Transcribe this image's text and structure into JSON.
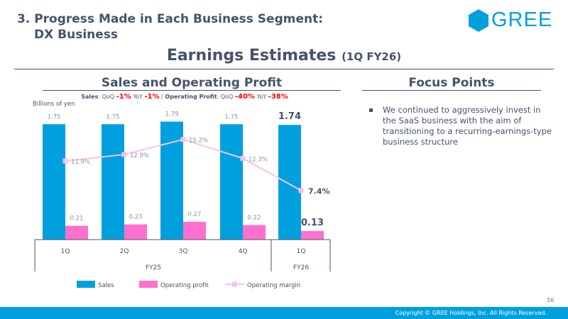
{
  "section_title": [
    "3. Progress Made in Each Business Segment:",
    "DX Business"
  ],
  "logo": "GREE",
  "title": "Earnings Estimates",
  "title_suffix": "(1Q FY26)",
  "left_heading": "Sales and Operating Profit",
  "right_heading": "Focus Points",
  "subtitle": {
    "sales": "Sales",
    "qoq": "QoQ",
    "yoy": "YoY",
    "sales_qoq": "-1%",
    "sales_yoy": "-1%",
    "sep": "/",
    "op": "Operating Profit",
    "op_qoq": "-40%",
    "op_yoy": "-38%"
  },
  "unit": "Billions of yen",
  "focus_points": [
    "We continued to aggressively invest in the SaaS business with the aim of transitioning to a recurring-earnings-type business structure"
  ],
  "chart_data": {
    "type": "bar",
    "categories": [
      "1Q",
      "2Q",
      "3Q",
      "4Q",
      "1Q"
    ],
    "groups": [
      {
        "label": "FY25",
        "span": 4
      },
      {
        "label": "FY26",
        "span": 1
      }
    ],
    "series": [
      {
        "name": "Sales",
        "type": "bar",
        "color": "#00a0df",
        "values": [
          1.75,
          1.75,
          1.79,
          1.75,
          1.74
        ],
        "labels": [
          "1.75",
          "1.75",
          "1.79",
          "1.75",
          "1.74"
        ]
      },
      {
        "name": "Operating profit",
        "type": "bar",
        "color": "#ff6fcf",
        "values": [
          0.21,
          0.23,
          0.27,
          0.22,
          0.13
        ],
        "labels": [
          "0.21",
          "0.23",
          "0.27",
          "0.22",
          "0.13"
        ]
      },
      {
        "name": "Operating margin",
        "type": "line",
        "color": "#f7c3e6",
        "values": [
          11.9,
          12.9,
          15.2,
          12.3,
          7.4
        ],
        "labels": [
          "11.9%",
          "12.9%",
          "15.2%",
          "12.3%",
          "7.4%"
        ]
      }
    ],
    "ylabel": "Billions of yen"
  },
  "page_number": "56",
  "copyright": "Copyright © GREE Holdings, Inc. All Rights Reserved."
}
